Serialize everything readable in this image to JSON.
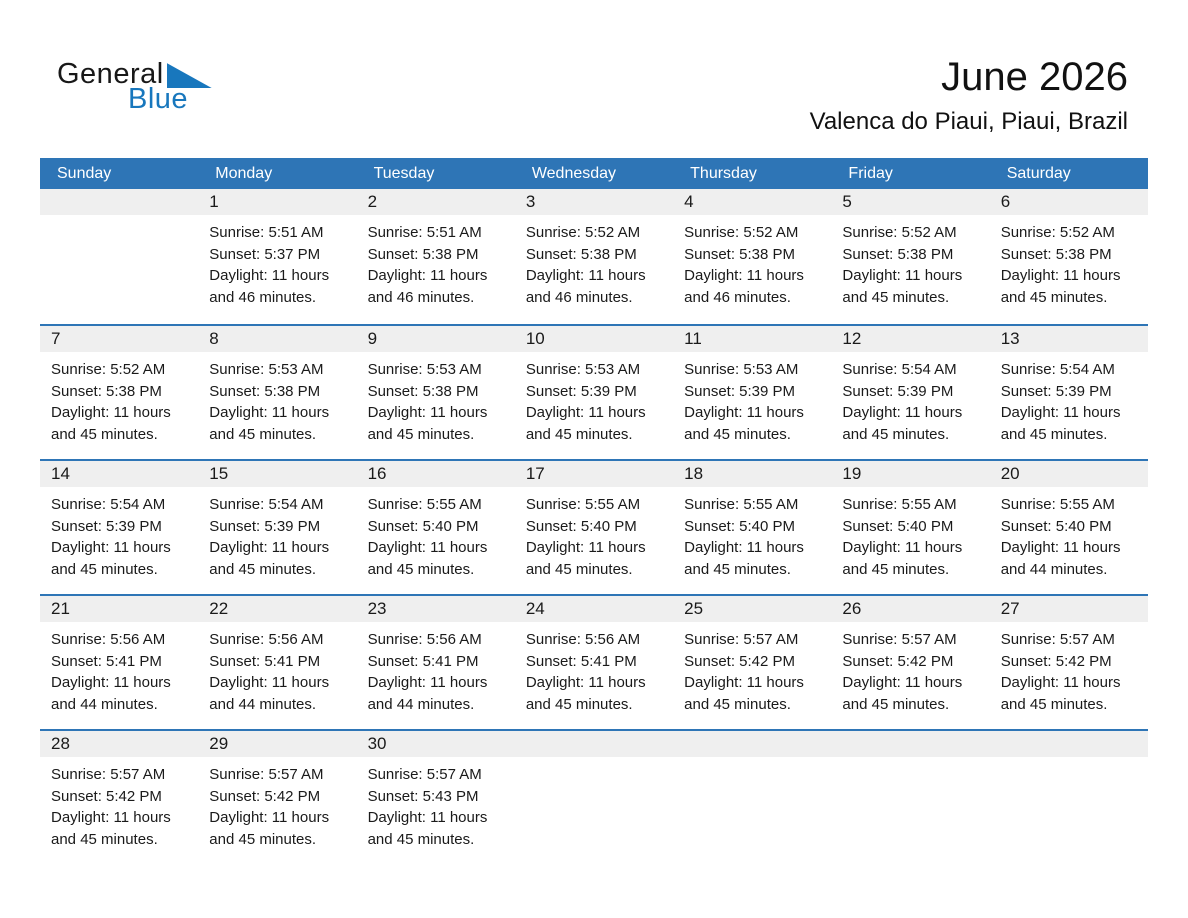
{
  "logo": {
    "part1": "General",
    "part2": "Blue"
  },
  "header": {
    "title": "June 2026",
    "subtitle": "Valenca do Piaui, Piaui, Brazil"
  },
  "colors": {
    "header_blue": "#2E75B6",
    "band_gray": "#EFEFEF",
    "logo_blue": "#1877BD"
  },
  "labels": {
    "sunrise": "Sunrise:",
    "sunset": "Sunset:",
    "daylight": "Daylight:"
  },
  "weekdays": [
    "Sunday",
    "Monday",
    "Tuesday",
    "Wednesday",
    "Thursday",
    "Friday",
    "Saturday"
  ],
  "weeks": [
    {
      "days": [
        null,
        {
          "date": "1",
          "sunrise": "5:51 AM",
          "sunset": "5:37 PM",
          "daylight": "11 hours and 46 minutes."
        },
        {
          "date": "2",
          "sunrise": "5:51 AM",
          "sunset": "5:38 PM",
          "daylight": "11 hours and 46 minutes."
        },
        {
          "date": "3",
          "sunrise": "5:52 AM",
          "sunset": "5:38 PM",
          "daylight": "11 hours and 46 minutes."
        },
        {
          "date": "4",
          "sunrise": "5:52 AM",
          "sunset": "5:38 PM",
          "daylight": "11 hours and 46 minutes."
        },
        {
          "date": "5",
          "sunrise": "5:52 AM",
          "sunset": "5:38 PM",
          "daylight": "11 hours and 45 minutes."
        },
        {
          "date": "6",
          "sunrise": "5:52 AM",
          "sunset": "5:38 PM",
          "daylight": "11 hours and 45 minutes."
        }
      ]
    },
    {
      "days": [
        {
          "date": "7",
          "sunrise": "5:52 AM",
          "sunset": "5:38 PM",
          "daylight": "11 hours and 45 minutes."
        },
        {
          "date": "8",
          "sunrise": "5:53 AM",
          "sunset": "5:38 PM",
          "daylight": "11 hours and 45 minutes."
        },
        {
          "date": "9",
          "sunrise": "5:53 AM",
          "sunset": "5:38 PM",
          "daylight": "11 hours and 45 minutes."
        },
        {
          "date": "10",
          "sunrise": "5:53 AM",
          "sunset": "5:39 PM",
          "daylight": "11 hours and 45 minutes."
        },
        {
          "date": "11",
          "sunrise": "5:53 AM",
          "sunset": "5:39 PM",
          "daylight": "11 hours and 45 minutes."
        },
        {
          "date": "12",
          "sunrise": "5:54 AM",
          "sunset": "5:39 PM",
          "daylight": "11 hours and 45 minutes."
        },
        {
          "date": "13",
          "sunrise": "5:54 AM",
          "sunset": "5:39 PM",
          "daylight": "11 hours and 45 minutes."
        }
      ]
    },
    {
      "days": [
        {
          "date": "14",
          "sunrise": "5:54 AM",
          "sunset": "5:39 PM",
          "daylight": "11 hours and 45 minutes."
        },
        {
          "date": "15",
          "sunrise": "5:54 AM",
          "sunset": "5:39 PM",
          "daylight": "11 hours and 45 minutes."
        },
        {
          "date": "16",
          "sunrise": "5:55 AM",
          "sunset": "5:40 PM",
          "daylight": "11 hours and 45 minutes."
        },
        {
          "date": "17",
          "sunrise": "5:55 AM",
          "sunset": "5:40 PM",
          "daylight": "11 hours and 45 minutes."
        },
        {
          "date": "18",
          "sunrise": "5:55 AM",
          "sunset": "5:40 PM",
          "daylight": "11 hours and 45 minutes."
        },
        {
          "date": "19",
          "sunrise": "5:55 AM",
          "sunset": "5:40 PM",
          "daylight": "11 hours and 45 minutes."
        },
        {
          "date": "20",
          "sunrise": "5:55 AM",
          "sunset": "5:40 PM",
          "daylight": "11 hours and 44 minutes."
        }
      ]
    },
    {
      "days": [
        {
          "date": "21",
          "sunrise": "5:56 AM",
          "sunset": "5:41 PM",
          "daylight": "11 hours and 44 minutes."
        },
        {
          "date": "22",
          "sunrise": "5:56 AM",
          "sunset": "5:41 PM",
          "daylight": "11 hours and 44 minutes."
        },
        {
          "date": "23",
          "sunrise": "5:56 AM",
          "sunset": "5:41 PM",
          "daylight": "11 hours and 44 minutes."
        },
        {
          "date": "24",
          "sunrise": "5:56 AM",
          "sunset": "5:41 PM",
          "daylight": "11 hours and 45 minutes."
        },
        {
          "date": "25",
          "sunrise": "5:57 AM",
          "sunset": "5:42 PM",
          "daylight": "11 hours and 45 minutes."
        },
        {
          "date": "26",
          "sunrise": "5:57 AM",
          "sunset": "5:42 PM",
          "daylight": "11 hours and 45 minutes."
        },
        {
          "date": "27",
          "sunrise": "5:57 AM",
          "sunset": "5:42 PM",
          "daylight": "11 hours and 45 minutes."
        }
      ]
    },
    {
      "days": [
        {
          "date": "28",
          "sunrise": "5:57 AM",
          "sunset": "5:42 PM",
          "daylight": "11 hours and 45 minutes."
        },
        {
          "date": "29",
          "sunrise": "5:57 AM",
          "sunset": "5:42 PM",
          "daylight": "11 hours and 45 minutes."
        },
        {
          "date": "30",
          "sunrise": "5:57 AM",
          "sunset": "5:43 PM",
          "daylight": "11 hours and 45 minutes."
        },
        null,
        null,
        null,
        null
      ]
    }
  ]
}
